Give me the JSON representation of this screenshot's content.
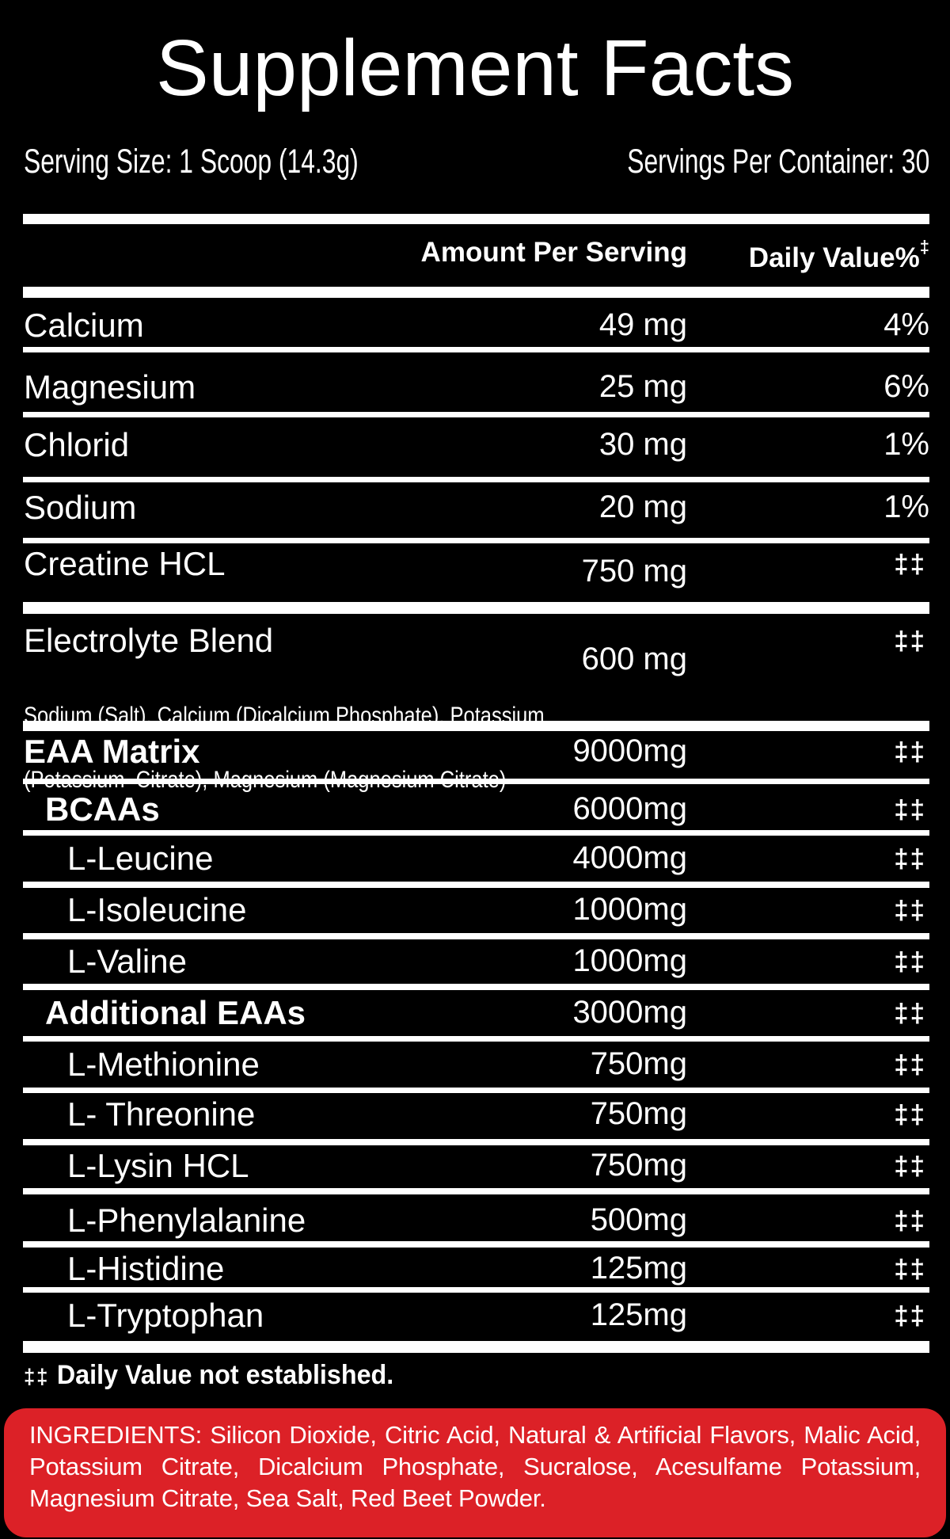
{
  "label": {
    "title": "Supplement Facts",
    "serving_size": "Serving Size: 1 Scoop (14.3g)",
    "servings_per_container": "Servings Per Container: 30",
    "columns": {
      "amount": "Amount Per Serving",
      "daily_value": "Daily Value%",
      "daily_value_footnote_symbol": "‡"
    },
    "rows": [
      {
        "name": "Calcium",
        "amount": "49 mg",
        "daily_value": "4%",
        "level": 0,
        "bold": false
      },
      {
        "name": "Magnesium",
        "amount": "25 mg",
        "daily_value": "6%",
        "level": 0,
        "bold": false
      },
      {
        "name": "Chlorid",
        "amount": "30 mg",
        "daily_value": "1%",
        "level": 0,
        "bold": false
      },
      {
        "name": "Sodium",
        "amount": "20 mg",
        "daily_value": "1%",
        "level": 0,
        "bold": false
      },
      {
        "name": "Creatine HCL",
        "amount": "750 mg",
        "daily_value": "‡‡",
        "level": 0,
        "bold": false
      },
      {
        "name": "Electrolyte Blend",
        "amount": "600 mg",
        "daily_value": "‡‡",
        "level": 0,
        "bold": false
      },
      {
        "name": "EAA Matrix",
        "amount": "9000mg",
        "daily_value": "‡‡",
        "level": 0,
        "bold": true
      },
      {
        "name": "BCAAs",
        "amount": "6000mg",
        "daily_value": "‡‡",
        "level": 1,
        "bold": true
      },
      {
        "name": "L-Leucine",
        "amount": "4000mg",
        "daily_value": "‡‡",
        "level": 2,
        "bold": false
      },
      {
        "name": "L-Isoleucine",
        "amount": "1000mg",
        "daily_value": "‡‡",
        "level": 2,
        "bold": false
      },
      {
        "name": "L-Valine",
        "amount": "1000mg",
        "daily_value": "‡‡",
        "level": 2,
        "bold": false
      },
      {
        "name": "Additional EAAs",
        "amount": "3000mg",
        "daily_value": "‡‡",
        "level": 1,
        "bold": true
      },
      {
        "name": "L-Methionine",
        "amount": "750mg",
        "daily_value": "‡‡",
        "level": 2,
        "bold": false
      },
      {
        "name": "L- Threonine",
        "amount": "750mg",
        "daily_value": "‡‡",
        "level": 2,
        "bold": false
      },
      {
        "name": "L-Lysin HCL",
        "amount": "750mg",
        "daily_value": "‡‡",
        "level": 2,
        "bold": false
      },
      {
        "name": "L-Phenylalanine",
        "amount": "500mg",
        "daily_value": "‡‡",
        "level": 2,
        "bold": false
      },
      {
        "name": "L-Histidine",
        "amount": "125mg",
        "daily_value": "‡‡",
        "level": 2,
        "bold": false
      },
      {
        "name": "L-Tryptophan",
        "amount": "125mg",
        "daily_value": "‡‡",
        "level": 2,
        "bold": false
      }
    ],
    "electrolyte_sub": [
      "Sodium (Salt), Calcium (Dicalcium Phosphate), Potassium",
      "(Potassium  Citrate), Magnesium (Magnesium Citrate)"
    ],
    "footnote": {
      "symbol": "‡‡",
      "text": "Daily Value not established."
    },
    "ingredients": "INGREDIENTS: Silicon Dioxide, Citric Acid, Natural & Artificial Flavors, Malic Acid, Potassium Citrate, Dicalcium Phosphate, Sucralose, Acesulfame Potassium, Magnesium Citrate, Sea Salt, Red Beet Powder.",
    "colors": {
      "background": "#000000",
      "text": "#FFFFFF",
      "ingredients_box": "#DC2127"
    }
  }
}
